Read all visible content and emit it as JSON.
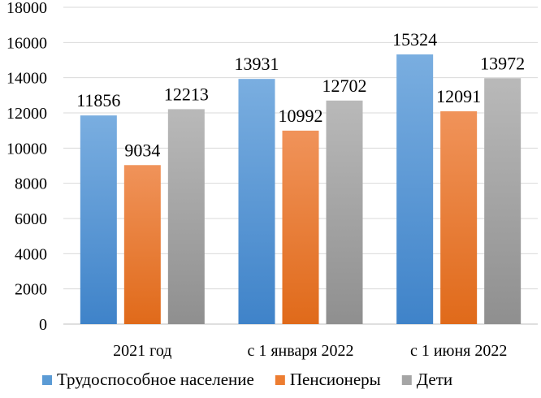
{
  "chart_data": {
    "type": "bar",
    "categories": [
      "2021 год",
      "с 1 января 2022",
      "с 1 июня 2022"
    ],
    "series": [
      {
        "name": "Трудоспособное население",
        "values": [
          11856,
          13931,
          15324
        ],
        "color": "#5b9bd5"
      },
      {
        "name": "Пенсионеры",
        "values": [
          9034,
          10992,
          12091
        ],
        "color": "#ed7d31"
      },
      {
        "name": "Дети",
        "values": [
          12213,
          12702,
          13972
        ],
        "color": "#a5a5a5"
      }
    ],
    "ylim": [
      0,
      18000
    ],
    "yticks": [
      0,
      2000,
      4000,
      6000,
      8000,
      10000,
      12000,
      14000,
      16000,
      18000
    ],
    "grid": true,
    "legend_position": "bottom",
    "data_labels": true
  }
}
